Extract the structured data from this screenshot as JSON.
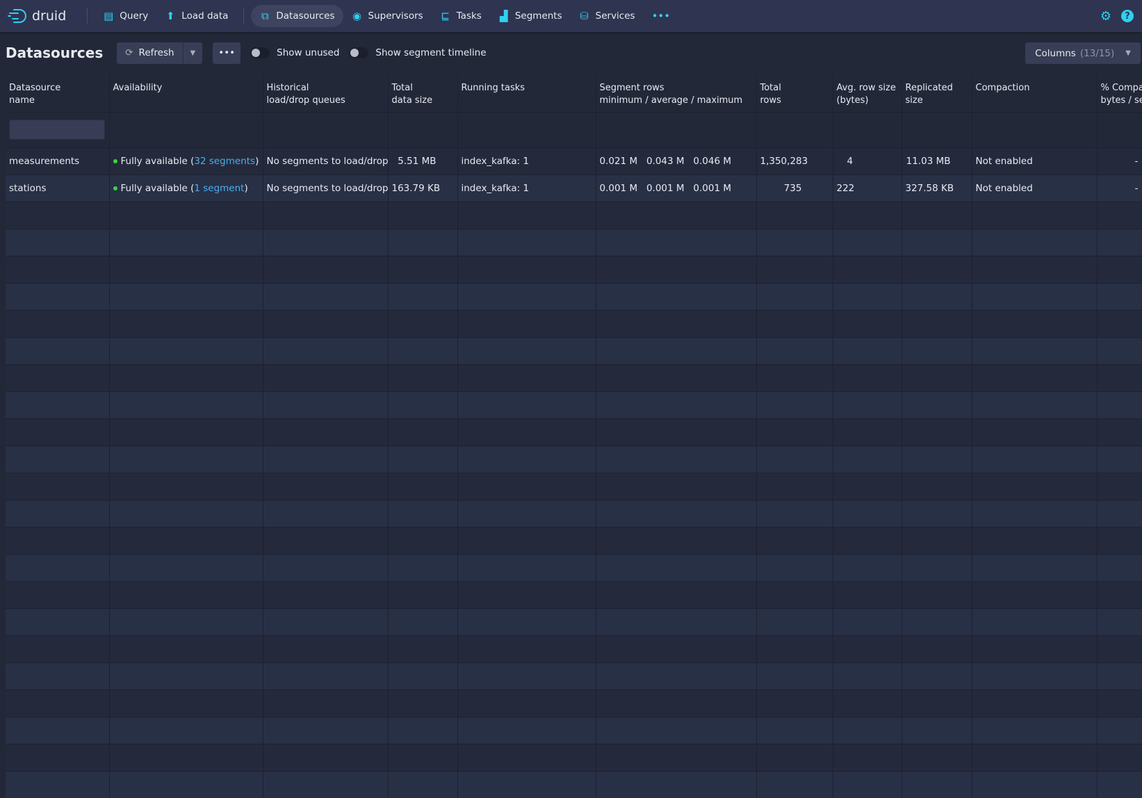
{
  "nav": {
    "logo": "druid",
    "items": [
      {
        "label": "Query",
        "icon": "document-icon"
      },
      {
        "label": "Load data",
        "icon": "upload-tree-icon"
      },
      {
        "label": "Datasources",
        "icon": "multi-window-icon",
        "active": true
      },
      {
        "label": "Supervisors",
        "icon": "eye-icon"
      },
      {
        "label": "Tasks",
        "icon": "gantt-icon"
      },
      {
        "label": "Segments",
        "icon": "bars-icon"
      },
      {
        "label": "Services",
        "icon": "database-icon"
      }
    ],
    "more": "•••"
  },
  "toolbar": {
    "title": "Datasources",
    "refresh": "Refresh",
    "more": "•••",
    "show_unused": "Show unused",
    "show_timeline": "Show segment timeline",
    "columns": "Columns",
    "columns_count": "(13/15)"
  },
  "table": {
    "headers": [
      "Datasource\nname",
      "Availability",
      "Historical\nload/drop queues",
      "Total\ndata size",
      "Running tasks",
      "Segment rows\nminimum / average / maximum",
      "Total\nrows",
      "Avg. row size\n(bytes)",
      "Replicated\nsize",
      "Compaction",
      "% Compacted\nbytes / segments"
    ],
    "rows": [
      {
        "name": "measurements",
        "avail": "Fully available (",
        "seg": "32 segments",
        "close": ")",
        "queues": "No segments to load/drop",
        "size": "5.51 MB",
        "tasks": "index_kafka: 1",
        "segrows": "0.021 M   0.043 M   0.046 M",
        "rows": "1,350,283",
        "avg": "4",
        "repl": "11.03 MB",
        "compaction": "Not enabled",
        "pct": "-"
      },
      {
        "name": "stations",
        "avail": "Fully available (",
        "seg": "1 segment",
        "close": ")",
        "queues": "No segments to load/drop",
        "size": "163.79 KB",
        "tasks": "index_kafka: 1",
        "segrows": "0.001 M   0.001 M   0.001 M",
        "rows": "735",
        "avg": "222",
        "repl": "327.58 KB",
        "compaction": "Not enabled",
        "pct": "-"
      }
    ]
  },
  "colors": {
    "accent": "#2fd0f0",
    "link": "#48aff0",
    "status_ok": "#3fd33f"
  }
}
